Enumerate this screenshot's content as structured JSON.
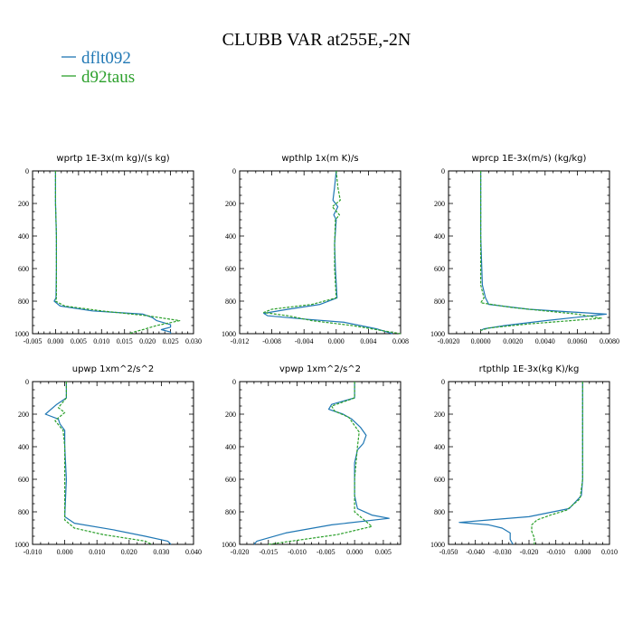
{
  "figure_title": "CLUBB VAR at255E,-2N",
  "colors": {
    "dflt092": "#1f77b4",
    "d92taus": "#2ca02c"
  },
  "chart_data": [
    {
      "type": "line",
      "title": "wprtp  1E-3x(m kg)/(s kg)",
      "xlim": [
        -0.005,
        0.03
      ],
      "xticks": [
        "-0.005",
        "0.000",
        "0.005",
        "0.010",
        "0.015",
        "0.020",
        "0.025",
        "0.030"
      ],
      "ylim": [
        0,
        1000
      ],
      "yticks": [
        "0",
        "200",
        "400",
        "600",
        "800",
        "1000"
      ],
      "series": [
        {
          "name": "dflt092",
          "style": "solid",
          "points": [
            [
              0,
              0
            ],
            [
              0,
              200
            ],
            [
              0.0002,
              400
            ],
            [
              0.0002,
              600
            ],
            [
              0.0001,
              780
            ],
            [
              -0.0003,
              800
            ],
            [
              0.001,
              830
            ],
            [
              0.008,
              860
            ],
            [
              0.019,
              880
            ],
            [
              0.021,
              900
            ],
            [
              0.022,
              920
            ],
            [
              0.025,
              945
            ],
            [
              0.025,
              960
            ],
            [
              0.023,
              975
            ],
            [
              0.025,
              990
            ],
            [
              0.025,
              1000
            ]
          ]
        },
        {
          "name": "d92taus",
          "style": "dashed",
          "points": [
            [
              0,
              0
            ],
            [
              0,
              200
            ],
            [
              0.0002,
              400
            ],
            [
              0.0002,
              600
            ],
            [
              0.0002,
              780
            ],
            [
              0,
              800
            ],
            [
              0.002,
              830
            ],
            [
              0.01,
              860
            ],
            [
              0.02,
              890
            ],
            [
              0.027,
              920
            ],
            [
              0.022,
              950
            ],
            [
              0.019,
              975
            ],
            [
              0.017,
              990
            ],
            [
              0.016,
              1000
            ]
          ]
        }
      ]
    },
    {
      "type": "line",
      "title": "wpthlp  1x(m K)/s",
      "xlim": [
        -0.012,
        0.008
      ],
      "xticks": [
        "-0.012",
        "-0.008",
        "-0.004",
        "0.000",
        "0.004",
        "0.008"
      ],
      "ylim": [
        0,
        1000
      ],
      "yticks": [
        "0",
        "200",
        "400",
        "600",
        "800",
        "1000"
      ],
      "series": [
        {
          "name": "dflt092",
          "style": "solid",
          "points": [
            [
              0,
              0
            ],
            [
              -0.0002,
              100
            ],
            [
              -0.0004,
              180
            ],
            [
              0.0002,
              220
            ],
            [
              -0.0003,
              270
            ],
            [
              0,
              300
            ],
            [
              -0.0002,
              450
            ],
            [
              -0.0001,
              600
            ],
            [
              0.0001,
              780
            ],
            [
              -0.002,
              820
            ],
            [
              -0.006,
              850
            ],
            [
              -0.009,
              875
            ],
            [
              -0.0085,
              890
            ],
            [
              -0.004,
              910
            ],
            [
              0.001,
              930
            ],
            [
              0.005,
              970
            ],
            [
              0.007,
              1000
            ]
          ]
        },
        {
          "name": "d92taus",
          "style": "dashed",
          "points": [
            [
              0,
              0
            ],
            [
              0.0002,
              100
            ],
            [
              0.0005,
              180
            ],
            [
              -0.0005,
              220
            ],
            [
              0.0004,
              270
            ],
            [
              -0.0001,
              300
            ],
            [
              -0.0002,
              450
            ],
            [
              -0.0002,
              600
            ],
            [
              0,
              780
            ],
            [
              -0.003,
              820
            ],
            [
              -0.008,
              850
            ],
            [
              -0.009,
              870
            ],
            [
              -0.006,
              890
            ],
            [
              -0.003,
              920
            ],
            [
              0.002,
              950
            ],
            [
              0.005,
              975
            ],
            [
              0.008,
              1000
            ]
          ]
        }
      ]
    },
    {
      "type": "line",
      "title": "wprcp  1E-3x(m/s) (kg/kg)",
      "xlim": [
        -0.002,
        0.008
      ],
      "xticks": [
        "-0.0020",
        "0.0000",
        "0.0020",
        "0.0040",
        "0.0060",
        "0.0080"
      ],
      "ylim": [
        0,
        1000
      ],
      "yticks": [
        "0",
        "200",
        "400",
        "600",
        "800",
        "1000"
      ],
      "series": [
        {
          "name": "dflt092",
          "style": "solid",
          "points": [
            [
              0,
              0
            ],
            [
              0,
              400
            ],
            [
              0.0001,
              700
            ],
            [
              0.0003,
              780
            ],
            [
              0.0005,
              820
            ],
            [
              0.003,
              850
            ],
            [
              0.0078,
              880
            ],
            [
              0.004,
              920
            ],
            [
              0.0015,
              950
            ],
            [
              0.0002,
              970
            ],
            [
              0,
              980
            ]
          ]
        },
        {
          "name": "d92taus",
          "style": "dashed",
          "points": [
            [
              0,
              0
            ],
            [
              0,
              400
            ],
            [
              0,
              700
            ],
            [
              0.0002,
              780
            ],
            [
              0,
              810
            ],
            [
              0.002,
              840
            ],
            [
              0.006,
              880
            ],
            [
              0.0075,
              905
            ],
            [
              0.003,
              940
            ],
            [
              0.0005,
              965
            ],
            [
              0,
              980
            ]
          ]
        }
      ]
    },
    {
      "type": "line",
      "title": "upwp  1xm^2/s^2",
      "xlim": [
        -0.01,
        0.04
      ],
      "xticks": [
        "-0.010",
        "0.000",
        "0.010",
        "0.020",
        "0.030",
        "0.040"
      ],
      "ylim": [
        0,
        1000
      ],
      "yticks": [
        "0",
        "200",
        "400",
        "600",
        "800",
        "1000"
      ],
      "series": [
        {
          "name": "dflt092",
          "style": "solid",
          "points": [
            [
              0.0005,
              0
            ],
            [
              0.0005,
              100
            ],
            [
              -0.0025,
              140
            ],
            [
              -0.006,
              200
            ],
            [
              -0.002,
              230
            ],
            [
              -0.0015,
              260
            ],
            [
              0,
              300
            ],
            [
              0,
              400
            ],
            [
              0.0005,
              600
            ],
            [
              0,
              830
            ],
            [
              0.003,
              870
            ],
            [
              0.015,
              910
            ],
            [
              0.025,
              950
            ],
            [
              0.032,
              980
            ],
            [
              0.033,
              1000
            ]
          ]
        },
        {
          "name": "d92taus",
          "style": "dashed",
          "points": [
            [
              0.0005,
              0
            ],
            [
              0.0005,
              100
            ],
            [
              -0.002,
              160
            ],
            [
              0,
              190
            ],
            [
              -0.003,
              240
            ],
            [
              -0.0005,
              300
            ],
            [
              0,
              400
            ],
            [
              0,
              600
            ],
            [
              0,
              850
            ],
            [
              0.003,
              900
            ],
            [
              0.012,
              940
            ],
            [
              0.025,
              980
            ],
            [
              0.027,
              1000
            ]
          ]
        }
      ]
    },
    {
      "type": "line",
      "title": "vpwp  1xm^2/s^2",
      "xlim": [
        -0.02,
        0.008
      ],
      "xticks": [
        "-0.020",
        "-0.015",
        "-0.010",
        "-0.005",
        "0.000",
        "0.005"
      ],
      "ylim": [
        0,
        1000
      ],
      "yticks": [
        "0",
        "200",
        "400",
        "600",
        "800",
        "1000"
      ],
      "series": [
        {
          "name": "dflt092",
          "style": "solid",
          "points": [
            [
              0,
              0
            ],
            [
              0,
              100
            ],
            [
              -0.004,
              140
            ],
            [
              -0.0045,
              170
            ],
            [
              -0.002,
              200
            ],
            [
              -0.0005,
              230
            ],
            [
              0.001,
              280
            ],
            [
              0.002,
              330
            ],
            [
              0.0015,
              380
            ],
            [
              0.0005,
              420
            ],
            [
              0,
              500
            ],
            [
              0,
              700
            ],
            [
              0.0005,
              780
            ],
            [
              0.003,
              820
            ],
            [
              0.006,
              840
            ],
            [
              -0.004,
              880
            ],
            [
              -0.012,
              930
            ],
            [
              -0.017,
              980
            ],
            [
              -0.0175,
              1000
            ]
          ]
        },
        {
          "name": "d92taus",
          "style": "dashed",
          "points": [
            [
              0,
              0
            ],
            [
              0,
              100
            ],
            [
              -0.004,
              150
            ],
            [
              -0.0035,
              180
            ],
            [
              -0.001,
              220
            ],
            [
              0,
              270
            ],
            [
              0.0008,
              310
            ],
            [
              0.0005,
              400
            ],
            [
              0,
              600
            ],
            [
              0,
              800
            ],
            [
              0.002,
              860
            ],
            [
              0.003,
              890
            ],
            [
              -0.003,
              940
            ],
            [
              -0.013,
              990
            ],
            [
              -0.015,
              1000
            ]
          ]
        }
      ]
    },
    {
      "type": "line",
      "title": "rtpthlp  1E-3x(kg K)/kg",
      "xlim": [
        -0.05,
        0.01
      ],
      "xticks": [
        "-0.050",
        "-0.040",
        "-0.030",
        "-0.020",
        "-0.010",
        "0.000",
        "0.010"
      ],
      "ylim": [
        0,
        1000
      ],
      "yticks": [
        "0",
        "200",
        "400",
        "600",
        "800",
        "1000"
      ],
      "series": [
        {
          "name": "dflt092",
          "style": "solid",
          "points": [
            [
              0,
              0
            ],
            [
              0,
              600
            ],
            [
              -0.0005,
              700
            ],
            [
              -0.005,
              780
            ],
            [
              -0.02,
              830
            ],
            [
              -0.035,
              850
            ],
            [
              -0.046,
              865
            ],
            [
              -0.035,
              880
            ],
            [
              -0.03,
              900
            ],
            [
              -0.027,
              930
            ],
            [
              -0.027,
              970
            ],
            [
              -0.026,
              1000
            ]
          ]
        },
        {
          "name": "d92taus",
          "style": "dashed",
          "points": [
            [
              0,
              0
            ],
            [
              0,
              600
            ],
            [
              -0.001,
              720
            ],
            [
              -0.006,
              790
            ],
            [
              -0.012,
              820
            ],
            [
              -0.017,
              850
            ],
            [
              -0.019,
              880
            ],
            [
              -0.019,
              920
            ],
            [
              -0.018,
              960
            ],
            [
              -0.018,
              1000
            ]
          ]
        }
      ]
    }
  ]
}
